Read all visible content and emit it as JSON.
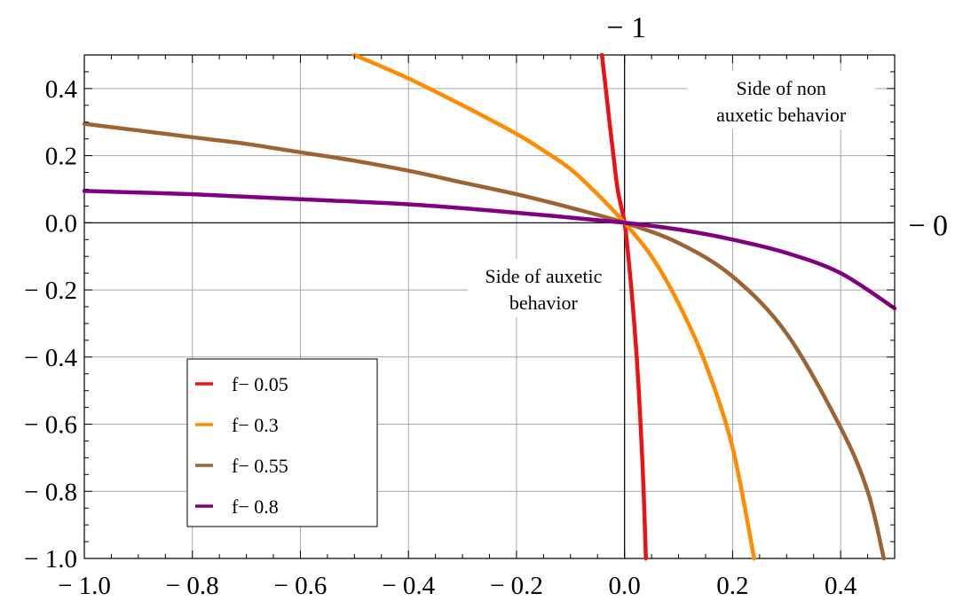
{
  "chart_data": {
    "type": "line",
    "xlim": [
      -1.0,
      0.5
    ],
    "ylim": [
      -1.0,
      0.5
    ],
    "x_ticks": [
      {
        "value": -1.0,
        "label": "− 1.0"
      },
      {
        "value": -0.8,
        "label": "− 0.8"
      },
      {
        "value": -0.6,
        "label": "− 0.6"
      },
      {
        "value": -0.4,
        "label": "− 0.4"
      },
      {
        "value": -0.2,
        "label": "− 0.2"
      },
      {
        "value": 0.0,
        "label": "0.0"
      },
      {
        "value": 0.2,
        "label": "0.2"
      },
      {
        "value": 0.4,
        "label": "0.4"
      }
    ],
    "y_ticks": [
      {
        "value": 0.4,
        "label": "0.4"
      },
      {
        "value": 0.2,
        "label": "0.2"
      },
      {
        "value": 0.0,
        "label": "0.0"
      },
      {
        "value": -0.2,
        "label": "− 0.2"
      },
      {
        "value": -0.4,
        "label": "− 0.4"
      },
      {
        "value": -0.6,
        "label": "− 0.6"
      },
      {
        "value": -0.8,
        "label": "− 0.8"
      },
      {
        "value": -1.0,
        "label": "− 1.0"
      }
    ],
    "grid": true,
    "axis_label_top": "− 1",
    "axis_label_right": "− 0",
    "annotations": [
      {
        "lines": [
          "Side of non",
          "auxetic behavior"
        ],
        "x": 0.29,
        "y": 0.36
      },
      {
        "lines": [
          "Side of auxetic",
          "behavior"
        ],
        "x": -0.15,
        "y": -0.2
      }
    ],
    "legend_position": "bottom-left",
    "series": [
      {
        "name": "f− 0.05",
        "color": "#ee1111",
        "points": [
          [
            -0.0419,
            0.5
          ],
          [
            -0.0347,
            0.4
          ],
          [
            -0.0278,
            0.3
          ],
          [
            -0.0204,
            0.2
          ],
          [
            -0.0128,
            0.1
          ],
          [
            0.0,
            0.0
          ],
          [
            0.0069,
            -0.1
          ],
          [
            0.0128,
            -0.2
          ],
          [
            0.0179,
            -0.3
          ],
          [
            0.0225,
            -0.4
          ],
          [
            0.0263,
            -0.5
          ],
          [
            0.0297,
            -0.6
          ],
          [
            0.0327,
            -0.7
          ],
          [
            0.0353,
            -0.8
          ],
          [
            0.0375,
            -0.9
          ],
          [
            0.0395,
            -1.0
          ]
        ]
      },
      {
        "name": "f− 0.3",
        "color": "#ff8c00",
        "points": [
          [
            -0.5,
            0.5
          ],
          [
            -0.4,
            0.43
          ],
          [
            -0.3,
            0.35
          ],
          [
            -0.2,
            0.265
          ],
          [
            -0.15,
            0.215
          ],
          [
            -0.1,
            0.16
          ],
          [
            -0.05,
            0.085
          ],
          [
            0.0,
            0.0
          ],
          [
            0.05,
            -0.1
          ],
          [
            0.1,
            -0.24
          ],
          [
            0.15,
            -0.42
          ],
          [
            0.2,
            -0.67
          ],
          [
            0.24,
            -1.0
          ]
        ]
      },
      {
        "name": "f− 0.55",
        "color": "#9c6333",
        "points": [
          [
            -1.0,
            0.295
          ],
          [
            -0.9,
            0.275
          ],
          [
            -0.8,
            0.255
          ],
          [
            -0.7,
            0.235
          ],
          [
            -0.6,
            0.21
          ],
          [
            -0.5,
            0.185
          ],
          [
            -0.4,
            0.155
          ],
          [
            -0.3,
            0.12
          ],
          [
            -0.2,
            0.085
          ],
          [
            -0.1,
            0.045
          ],
          [
            0.0,
            0.0
          ],
          [
            0.1,
            -0.06
          ],
          [
            0.2,
            -0.16
          ],
          [
            0.3,
            -0.33
          ],
          [
            0.4,
            -0.61
          ],
          [
            0.45,
            -0.8
          ],
          [
            0.48,
            -1.0
          ]
        ]
      },
      {
        "name": "f− 0.8",
        "color": "#800080",
        "points": [
          [
            -1.0,
            0.095
          ],
          [
            -0.8,
            0.085
          ],
          [
            -0.6,
            0.07
          ],
          [
            -0.4,
            0.055
          ],
          [
            -0.2,
            0.03
          ],
          [
            0.0,
            0.0
          ],
          [
            0.1,
            -0.02
          ],
          [
            0.2,
            -0.05
          ],
          [
            0.3,
            -0.09
          ],
          [
            0.4,
            -0.15
          ],
          [
            0.5,
            -0.255
          ]
        ]
      }
    ]
  }
}
